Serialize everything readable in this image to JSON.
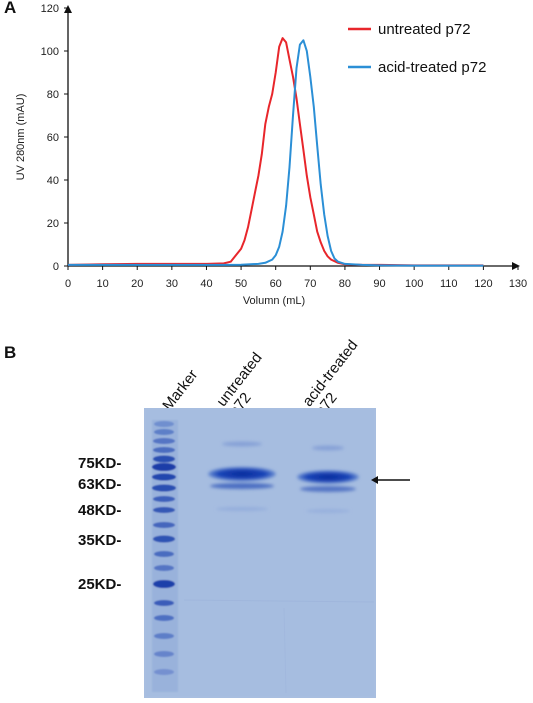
{
  "panel_a": {
    "letter": "A"
  },
  "panel_b": {
    "letter": "B"
  },
  "chart_data": {
    "type": "line",
    "xlabel": "Volumn (mL)",
    "ylabel": "UV 280nm (mAU)",
    "xlim": [
      0,
      130
    ],
    "ylim": [
      0,
      120
    ],
    "x_ticks": [
      0,
      10,
      20,
      30,
      40,
      50,
      60,
      70,
      80,
      90,
      100,
      110,
      120,
      130
    ],
    "y_ticks": [
      0,
      20,
      40,
      60,
      80,
      100,
      120
    ],
    "legend_position": "top-right",
    "series": [
      {
        "name": "untreated p72",
        "color": "#e8262b",
        "x": [
          0,
          10,
          20,
          30,
          40,
          45,
          47,
          49,
          50,
          51,
          52,
          53,
          54,
          55,
          56,
          57,
          58,
          59,
          60,
          61,
          62,
          63,
          64,
          65,
          66,
          67,
          68,
          69,
          70,
          71,
          72,
          73,
          74,
          75,
          76,
          78,
          80,
          85,
          90,
          100,
          110,
          120
        ],
        "y": [
          0.5,
          0.8,
          1,
          1,
          1,
          1.2,
          2,
          6,
          8,
          12,
          18,
          26,
          34,
          42,
          52,
          66,
          74,
          80,
          90,
          102,
          106,
          104,
          96,
          88,
          78,
          66,
          54,
          42,
          32,
          24,
          16,
          11,
          7,
          4.5,
          3,
          1.5,
          0.8,
          0.5,
          0.5,
          0.3,
          0.3,
          0.3
        ]
      },
      {
        "name": "acid-treated p72",
        "color": "#2b8fd6",
        "x": [
          0,
          10,
          20,
          30,
          40,
          45,
          50,
          55,
          57,
          59,
          60,
          61,
          62,
          63,
          64,
          65,
          66,
          67,
          68,
          69,
          70,
          71,
          72,
          73,
          74,
          75,
          76,
          77,
          78,
          80,
          85,
          90,
          100,
          110,
          120
        ],
        "y": [
          0.5,
          0.5,
          0.5,
          0.5,
          0.5,
          0.5,
          0.6,
          1,
          1.5,
          3,
          5,
          9,
          16,
          28,
          46,
          70,
          92,
          103,
          105,
          100,
          88,
          74,
          56,
          38,
          24,
          14,
          7,
          3.5,
          2,
          1,
          0.5,
          0.3,
          0.2,
          0.2,
          0.2
        ]
      }
    ]
  },
  "gel": {
    "lane_headers": [
      "Marker",
      "untreated\np72",
      "acid-treated\np72"
    ],
    "marker_labels": [
      "75KD-",
      "63KD-",
      "48KD-",
      "35KD-",
      "25KD-"
    ],
    "arrow": "target band"
  }
}
